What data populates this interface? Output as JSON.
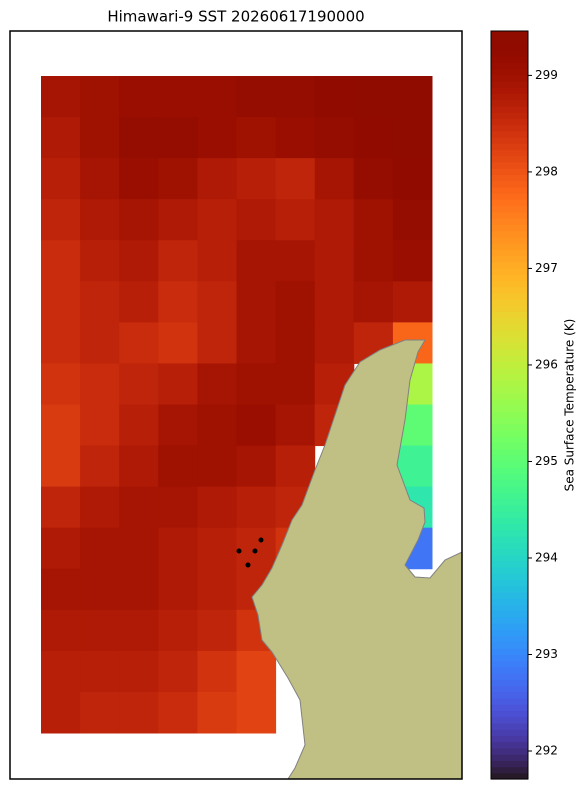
{
  "chart_data": {
    "type": "heatmap",
    "title": "Himawari-9 SST 20260617190000",
    "colorbar_label": "Sea Surface Temperature (K)",
    "colormap": "turbo",
    "clim": [
      291.71,
      299.46
    ],
    "cticks": [
      292,
      293,
      294,
      295,
      296,
      297,
      298,
      299
    ],
    "values": [
      [
        298.9,
        299.0,
        299.1,
        299.1,
        299.1,
        299.2,
        299.2,
        299.3,
        299.4,
        299.4
      ],
      [
        298.8,
        299.0,
        299.2,
        299.2,
        299.1,
        299.0,
        299.1,
        299.2,
        299.3,
        299.4
      ],
      [
        298.7,
        298.9,
        299.1,
        299.0,
        298.8,
        298.7,
        298.6,
        298.9,
        299.2,
        299.3
      ],
      [
        298.6,
        298.8,
        298.9,
        298.8,
        298.7,
        298.8,
        298.7,
        298.8,
        299.0,
        299.2
      ],
      [
        298.5,
        298.7,
        298.8,
        298.6,
        298.7,
        298.9,
        298.9,
        298.8,
        299.0,
        299.1
      ],
      [
        298.5,
        298.6,
        298.7,
        298.5,
        298.6,
        298.9,
        299.0,
        298.8,
        298.9,
        298.8
      ],
      [
        298.5,
        298.6,
        298.5,
        298.4,
        298.6,
        298.9,
        299.0,
        298.8,
        298.6,
        297.8
      ],
      [
        298.4,
        298.5,
        298.6,
        298.7,
        298.9,
        299.0,
        299.0,
        298.7,
        null,
        295.8
      ],
      [
        298.3,
        298.5,
        298.7,
        298.9,
        299.0,
        299.1,
        298.9,
        298.6,
        null,
        295.0
      ],
      [
        298.3,
        298.6,
        298.8,
        299.0,
        299.0,
        298.9,
        298.7,
        null,
        null,
        294.6
      ],
      [
        298.6,
        298.8,
        298.9,
        298.9,
        298.8,
        298.7,
        298.6,
        null,
        null,
        294.3
      ],
      [
        298.8,
        298.9,
        298.9,
        298.8,
        298.7,
        298.6,
        298.4,
        null,
        null,
        292.8
      ],
      [
        298.9,
        298.9,
        298.9,
        298.8,
        298.7,
        298.6,
        null,
        null,
        null,
        null
      ],
      [
        298.8,
        298.8,
        298.8,
        298.7,
        298.6,
        298.4,
        null,
        null,
        null,
        null
      ],
      [
        298.7,
        298.7,
        298.7,
        298.6,
        298.4,
        298.2,
        null,
        null,
        null,
        null
      ],
      [
        298.7,
        298.6,
        298.6,
        298.5,
        298.3,
        298.2,
        null,
        null,
        null,
        null
      ]
    ]
  }
}
